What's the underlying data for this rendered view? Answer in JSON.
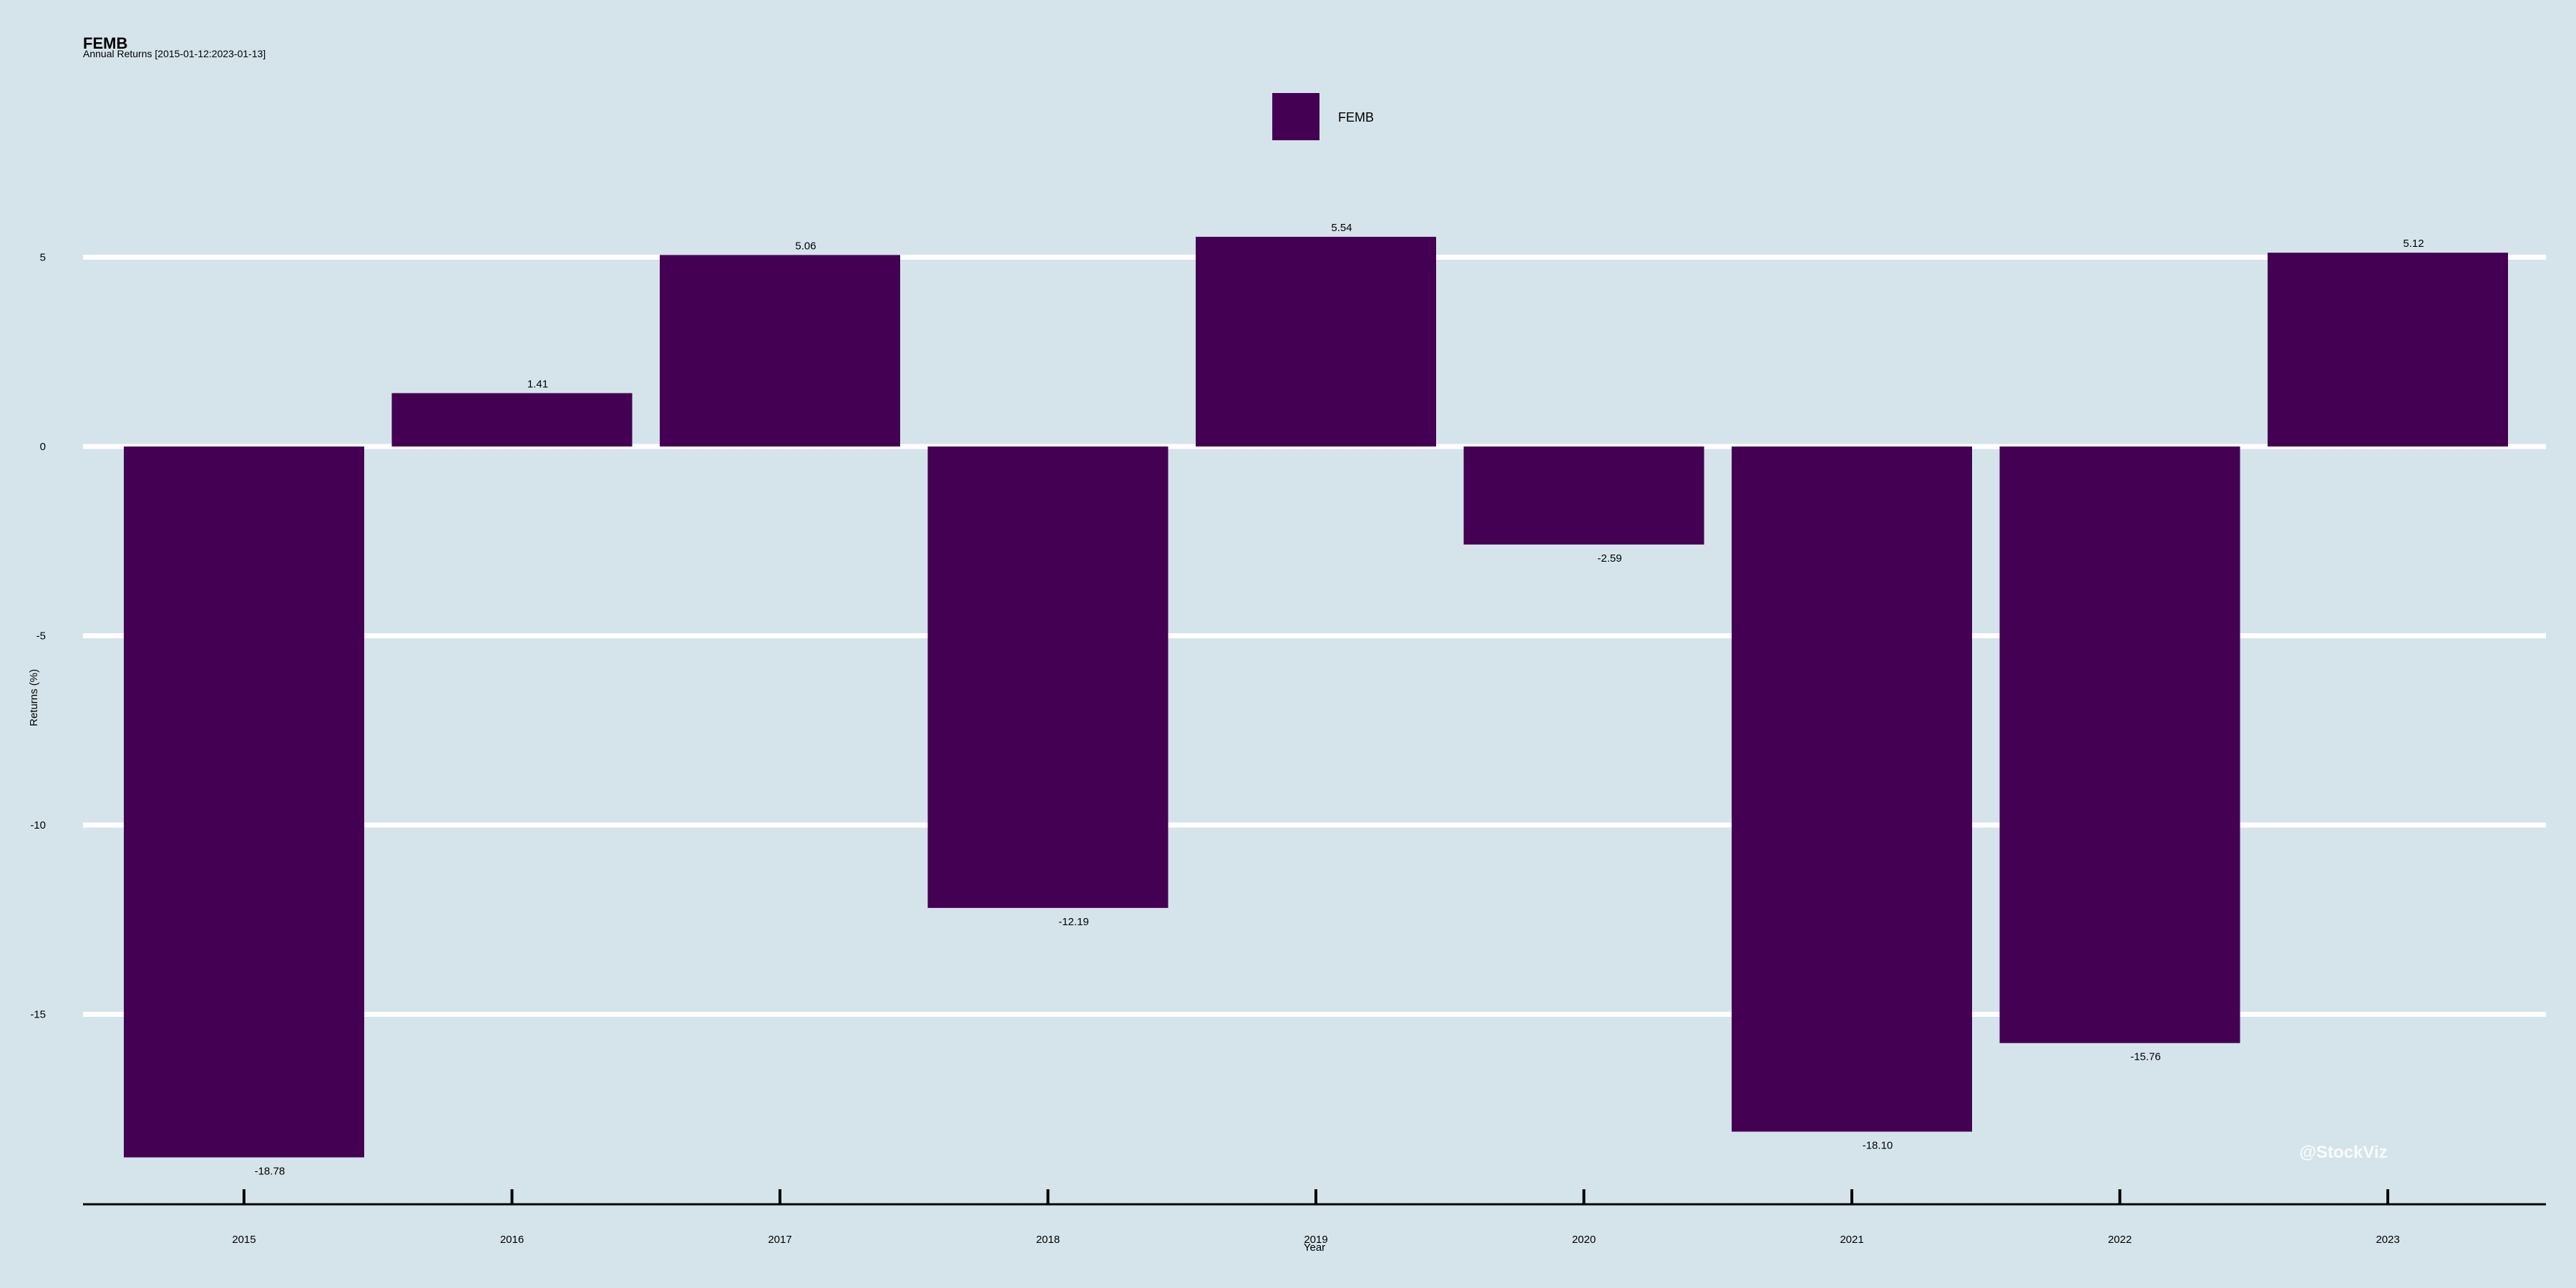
{
  "chart_data": {
    "type": "bar",
    "title": "FEMB",
    "subtitle": "Annual Returns [2015-01-12:2023-01-13]",
    "xlabel": "Year",
    "ylabel": "Returns (%)",
    "categories": [
      "2015",
      "2016",
      "2017",
      "2018",
      "2019",
      "2020",
      "2021",
      "2022",
      "2023"
    ],
    "series": [
      {
        "name": "FEMB",
        "values": [
          -18.78,
          1.41,
          5.06,
          -12.19,
          5.54,
          -2.59,
          -18.1,
          -15.76,
          5.12
        ],
        "labels": [
          "-18.78",
          "1.41",
          "5.06",
          "-12.19",
          "5.54",
          "-2.59",
          "-18.10",
          "-15.76",
          "5.12"
        ]
      }
    ],
    "ylim": [
      -19.5,
      7
    ],
    "yticks": [
      5,
      0,
      -5,
      -10,
      -15
    ],
    "ytick_labels": [
      "5",
      "0",
      "-5",
      "-10",
      "-15"
    ],
    "grid": true,
    "legend": "top-center",
    "colors": {
      "bar": "#440154",
      "background": "#d5e4eb",
      "grid": "#ffffff",
      "axis": "#000000"
    }
  },
  "watermark": "@StockViz"
}
